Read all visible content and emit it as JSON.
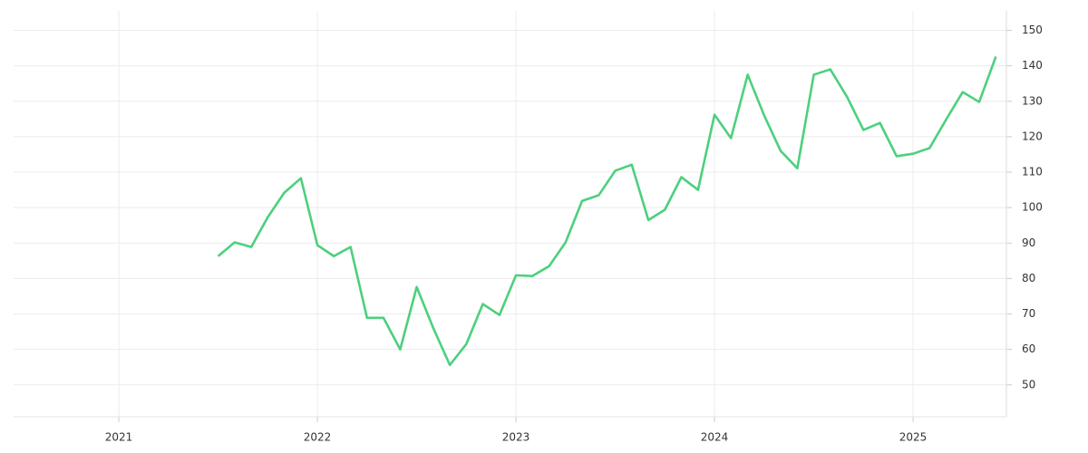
{
  "chart_data": {
    "type": "line",
    "x": [
      2021.5,
      2021.583,
      2021.667,
      2021.75,
      2021.833,
      2021.917,
      2022,
      2022.083,
      2022.167,
      2022.25,
      2022.333,
      2022.417,
      2022.5,
      2022.583,
      2022.667,
      2022.75,
      2022.833,
      2022.917,
      2023,
      2023.083,
      2023.167,
      2023.25,
      2023.333,
      2023.417,
      2023.5,
      2023.583,
      2023.667,
      2023.75,
      2023.833,
      2023.917,
      2024,
      2024.083,
      2024.167,
      2024.25,
      2024.333,
      2024.417,
      2024.5,
      2024.583,
      2024.667,
      2024.75,
      2024.833,
      2024.917,
      2025,
      2025.083,
      2025.167,
      2025.25,
      2025.333,
      2025.417
    ],
    "series": [
      {
        "color": "#4cd07d",
        "values": [
          86.3,
          90.2,
          88.9,
          97.3,
          104.2,
          108.3,
          89.4,
          86.3,
          88.9,
          68.9,
          68.9,
          60.0,
          77.6,
          66.1,
          55.6,
          61.5,
          72.8,
          69.7,
          80.9,
          80.7,
          83.5,
          90.2,
          101.9,
          103.5,
          110.4,
          112.1,
          96.5,
          99.4,
          108.6,
          105.0,
          126.2,
          119.6,
          137.5,
          126.0,
          116.0,
          111.1,
          137.5,
          139.0,
          131.3,
          121.9,
          123.9,
          114.5,
          115.2,
          116.8,
          124.9,
          132.6,
          129.8,
          142.6
        ]
      }
    ],
    "xlim": [
      2020.47,
      2025.47
    ],
    "xticks": [
      2021,
      2022,
      2023,
      2024,
      2025
    ],
    "ylim": [
      41,
      155.5
    ],
    "yticks": [
      50,
      60,
      70,
      80,
      90,
      100,
      110,
      120,
      130,
      140,
      150
    ],
    "grid": true
  }
}
